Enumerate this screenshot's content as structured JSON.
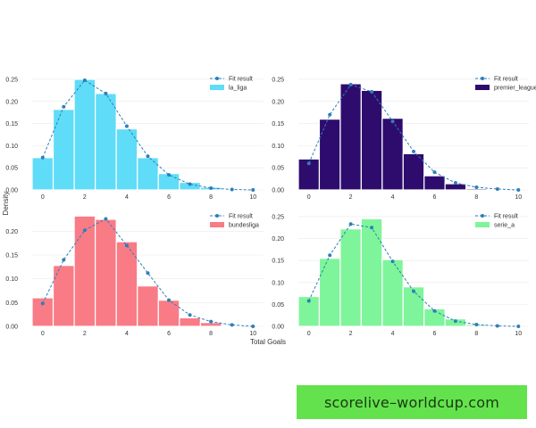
{
  "colors": {
    "fit_line": "#2e7fb8",
    "bar_edge": "#ffffff",
    "grid": "#eaeaea"
  },
  "watermark": {
    "text": "scorelive–worldcup.com"
  },
  "figure": {
    "ylabel": "Density",
    "xlabel": "Total Goals"
  },
  "chart_data": [
    {
      "type": "bar",
      "title": "",
      "series_label": "la_liga",
      "fit_label": "Fit result",
      "color": "#5fdcf8",
      "x_bins": [
        0,
        1,
        2,
        3,
        4,
        5,
        6,
        7,
        8,
        9
      ],
      "bar_values": [
        0.073,
        0.182,
        0.25,
        0.218,
        0.138,
        0.073,
        0.037,
        0.017,
        0.006,
        0.001
      ],
      "fit_x": [
        0,
        1,
        2,
        3,
        4,
        5,
        6,
        7,
        8,
        9,
        10
      ],
      "fit_y": [
        0.073,
        0.188,
        0.248,
        0.218,
        0.144,
        0.076,
        0.034,
        0.013,
        0.004,
        0.001,
        0.0
      ],
      "xlim": [
        -0.5,
        10.5
      ],
      "ylim": [
        0,
        0.26
      ],
      "xticks": [
        0,
        2,
        4,
        6,
        8,
        10
      ],
      "yticks": [
        "0.00",
        "0.05",
        "0.10",
        "0.15",
        "0.20",
        "0.25"
      ],
      "ylabel": "Density",
      "xlabel": ""
    },
    {
      "type": "bar",
      "title": "",
      "series_label": "premier_league",
      "fit_label": "Fit result",
      "color": "#2e0c6e",
      "x_bins": [
        0,
        1,
        2,
        3,
        4,
        5,
        6,
        7,
        8,
        9
      ],
      "bar_values": [
        0.07,
        0.16,
        0.24,
        0.225,
        0.162,
        0.082,
        0.032,
        0.014,
        0.003,
        0.001
      ],
      "fit_x": [
        0,
        1,
        2,
        3,
        4,
        5,
        6,
        7,
        8,
        9,
        10
      ],
      "fit_y": [
        0.06,
        0.17,
        0.238,
        0.222,
        0.155,
        0.087,
        0.04,
        0.016,
        0.006,
        0.002,
        0.0
      ],
      "xlim": [
        -0.5,
        10.5
      ],
      "ylim": [
        0,
        0.26
      ],
      "xticks": [
        0,
        2,
        4,
        6,
        8,
        10
      ],
      "yticks": [
        "0.00",
        "0.05",
        "0.10",
        "0.15",
        "0.20",
        "0.25"
      ],
      "ylabel": "",
      "xlabel": ""
    },
    {
      "type": "bar",
      "title": "",
      "series_label": "bundesliga",
      "fit_label": "Fit result",
      "color": "#f97b86",
      "x_bins": [
        0,
        1,
        2,
        3,
        4,
        5,
        6,
        7,
        8,
        9
      ],
      "bar_values": [
        0.06,
        0.128,
        0.232,
        0.225,
        0.178,
        0.085,
        0.055,
        0.018,
        0.008,
        0.001
      ],
      "fit_x": [
        0,
        1,
        2,
        3,
        4,
        5,
        6,
        7,
        8,
        9,
        10
      ],
      "fit_y": [
        0.048,
        0.14,
        0.202,
        0.226,
        0.17,
        0.112,
        0.055,
        0.024,
        0.01,
        0.003,
        0.0
      ],
      "xlim": [
        -0.5,
        10.5
      ],
      "ylim": [
        0,
        0.24
      ],
      "xticks": [
        0,
        2,
        4,
        6,
        8,
        10
      ],
      "yticks": [
        "0.00",
        "0.05",
        "0.10",
        "0.15",
        "0.20"
      ],
      "ylabel": "",
      "xlabel": "Total Goals"
    },
    {
      "type": "bar",
      "title": "",
      "series_label": "serie_a",
      "fit_label": "Fit result",
      "color": "#7ef59a",
      "x_bins": [
        0,
        1,
        2,
        3,
        4,
        5,
        6,
        7,
        8,
        9
      ],
      "bar_values": [
        0.068,
        0.155,
        0.222,
        0.245,
        0.152,
        0.09,
        0.04,
        0.017,
        0.004,
        0.001
      ],
      "fit_x": [
        0,
        1,
        2,
        3,
        4,
        5,
        6,
        7,
        8,
        9,
        10
      ],
      "fit_y": [
        0.058,
        0.162,
        0.233,
        0.225,
        0.148,
        0.08,
        0.035,
        0.012,
        0.004,
        0.001,
        0.0
      ],
      "xlim": [
        -0.5,
        10.5
      ],
      "ylim": [
        0,
        0.26
      ],
      "xticks": [
        0,
        2,
        4,
        6,
        8,
        10
      ],
      "yticks": [
        "0.00",
        "0.05",
        "0.10",
        "0.15",
        "0.20",
        "0.25"
      ],
      "ylabel": "",
      "xlabel": ""
    }
  ]
}
